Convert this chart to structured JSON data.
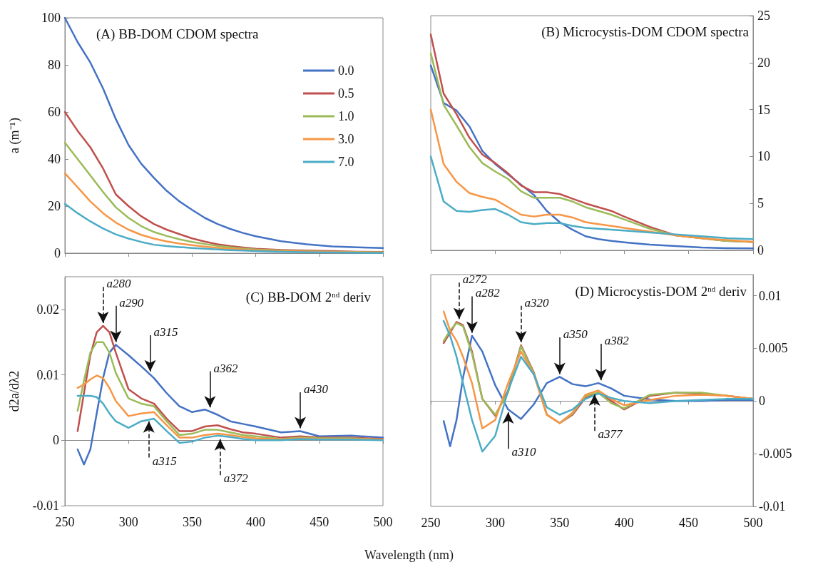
{
  "chart_data": [
    {
      "type": "line",
      "title": "(A) BB-DOM CDOM spectra",
      "ylabel": "a (m⁻¹)",
      "x": [
        250,
        260,
        270,
        280,
        290,
        300,
        310,
        320,
        330,
        340,
        350,
        360,
        370,
        380,
        390,
        400,
        420,
        440,
        460,
        480,
        500
      ],
      "series": [
        {
          "name": "0.0",
          "color": "#4472c4",
          "values": [
            100,
            89.7,
            81,
            70,
            57,
            46,
            38,
            32,
            26.5,
            22,
            18.4,
            15,
            12.4,
            10.3,
            8.6,
            7.2,
            5.1,
            3.8,
            2.9,
            2.5,
            2.2
          ]
        },
        {
          "name": "0.5",
          "color": "#c0504d",
          "values": [
            60,
            52,
            45,
            36,
            25,
            20,
            15.7,
            12.4,
            10,
            8.1,
            6.3,
            4.9,
            3.8,
            3,
            2.4,
            1.9,
            1.4,
            1.1,
            0.9,
            0.6,
            0.5
          ]
        },
        {
          "name": "1.0",
          "color": "#9bbb59",
          "values": [
            47,
            40,
            33,
            26,
            19.5,
            15,
            11.5,
            9,
            7.3,
            5.9,
            4.8,
            3.9,
            3.1,
            2.5,
            2,
            1.6,
            1.1,
            0.8,
            0.6,
            0.5,
            0.4
          ]
        },
        {
          "name": "3.0",
          "color": "#f79646",
          "values": [
            34,
            28,
            22,
            17,
            13,
            10,
            7.8,
            6.2,
            5,
            4.1,
            3.4,
            2.8,
            2.3,
            1.9,
            1.6,
            1.3,
            0.9,
            0.7,
            0.5,
            0.4,
            0.3
          ]
        },
        {
          "name": "7.0",
          "color": "#4bacc6",
          "values": [
            21,
            17,
            13.5,
            10.5,
            8,
            6.2,
            4.8,
            3.6,
            3,
            2.6,
            2.2,
            1.9,
            1.6,
            1.3,
            1.1,
            0.9,
            0.6,
            0.4,
            0.3,
            0.2,
            0.1
          ]
        }
      ],
      "xlim": [
        250,
        500
      ],
      "xticks": [
        {
          "value": 250,
          "label": null
        },
        {
          "value": 300,
          "label": null
        },
        {
          "value": 350,
          "label": null
        },
        {
          "value": 400,
          "label": null
        },
        {
          "value": 450,
          "label": null
        },
        {
          "value": 500,
          "label": null
        }
      ],
      "ylim": [
        0,
        100
      ],
      "yticks": [
        0,
        20,
        40,
        60,
        80,
        100
      ],
      "tick_labels": "y",
      "legend": "top right",
      "marker": "none"
    },
    {
      "type": "line",
      "title": "(B) Microcystis-DOM CDOM spectra",
      "x": [
        250,
        260,
        270,
        280,
        290,
        300,
        310,
        320,
        330,
        340,
        350,
        360,
        370,
        380,
        390,
        400,
        420,
        440,
        460,
        480,
        500
      ],
      "series": [
        {
          "color": "#4472c4",
          "values": [
            19.7,
            15.7,
            14.9,
            13.2,
            10.6,
            9.2,
            8.1,
            7,
            5.9,
            4.2,
            3,
            2.2,
            1.5,
            1.2,
            1,
            0.85,
            0.6,
            0.45,
            0.3,
            0.22,
            0.2
          ]
        },
        {
          "color": "#c0504d",
          "values": [
            23,
            16.7,
            14.5,
            12,
            10.2,
            9.3,
            8.2,
            6.9,
            6.2,
            6.2,
            6,
            5.5,
            5,
            4.6,
            4.2,
            3.6,
            2.5,
            1.6,
            1.3,
            1,
            0.9
          ]
        },
        {
          "color": "#9bbb59",
          "values": [
            21,
            15.5,
            13.3,
            11,
            9.3,
            8.4,
            7.6,
            6.3,
            5.6,
            5.6,
            5.6,
            5.2,
            4.6,
            4.2,
            3.8,
            3.3,
            2.3,
            1.6,
            1.3,
            1,
            0.9
          ]
        },
        {
          "color": "#f79646",
          "values": [
            15,
            9.2,
            7.3,
            6.1,
            5.7,
            5.4,
            4.6,
            3.8,
            3.6,
            3.8,
            3.8,
            3.5,
            3,
            2.8,
            2.6,
            2.4,
            2,
            1.6,
            1.3,
            1.1,
            0.9
          ]
        },
        {
          "color": "#4bacc6",
          "values": [
            10,
            5.2,
            4.2,
            4.1,
            4.3,
            4.4,
            3.8,
            3,
            2.8,
            2.9,
            2.9,
            2.6,
            2.4,
            2.3,
            2.2,
            2.1,
            1.9,
            1.7,
            1.5,
            1.3,
            1.2
          ]
        }
      ],
      "xlim": [
        250,
        500
      ],
      "xticks": [
        {
          "value": 250,
          "label": null
        },
        {
          "value": 300,
          "label": null
        },
        {
          "value": 350,
          "label": null
        },
        {
          "value": 400,
          "label": null
        },
        {
          "value": 450,
          "label": null
        },
        {
          "value": 500,
          "label": null
        }
      ],
      "ylim": [
        0,
        25
      ],
      "yticks": [
        0,
        5,
        10,
        15,
        20,
        25
      ],
      "tick_labels": "y",
      "marker": "none"
    },
    {
      "type": "line",
      "title": "(C) BB-DOM 2$^{nd}$ deriv",
      "ylabel": "d2a/dλ2",
      "xlabel": "Wavelength (nm)",
      "x": [
        260,
        265,
        270,
        275,
        280,
        285,
        290,
        300,
        310,
        320,
        330,
        340,
        350,
        360,
        370,
        380,
        390,
        400,
        420,
        435,
        450,
        475,
        500
      ],
      "series": [
        {
          "color": "#4472c4",
          "values": [
            -0.0014,
            -0.0037,
            -0.0014,
            0.0041,
            0.0095,
            0.0134,
            0.0146,
            0.013,
            0.0113,
            0.0095,
            0.0072,
            0.0052,
            0.0043,
            0.0047,
            0.0039,
            0.0029,
            0.0025,
            0.0021,
            0.0012,
            0.0014,
            0.0006,
            0.0007,
            0.0004
          ]
        },
        {
          "color": "#c0504d",
          "values": [
            0.0014,
            0.0072,
            0.013,
            0.0165,
            0.0175,
            0.0165,
            0.0134,
            0.0078,
            0.0064,
            0.0056,
            0.0033,
            0.0014,
            0.0014,
            0.0021,
            0.0023,
            0.0017,
            0.0012,
            0.001,
            0.0004,
            0.0006,
            0.0004,
            0.0004,
            0.0002
          ]
        },
        {
          "color": "#9bbb59",
          "values": [
            0.0045,
            0.0091,
            0.0134,
            0.015,
            0.015,
            0.0134,
            0.0103,
            0.0064,
            0.0056,
            0.0052,
            0.0029,
            0.0008,
            0.001,
            0.0016,
            0.0016,
            0.0012,
            0.0008,
            0.0006,
            0.0002,
            0.0004,
            0.0003,
            0.0003,
            0.0001
          ]
        },
        {
          "color": "#f79646",
          "values": [
            0.008,
            0.0085,
            0.0093,
            0.0099,
            0.0095,
            0.008,
            0.006,
            0.0037,
            0.0041,
            0.0043,
            0.0023,
            0.0004,
            0.0004,
            0.0008,
            0.001,
            0.0008,
            0.0005,
            0.0003,
            0.0001,
            0.0003,
            0.0002,
            0.0002,
            0.0001
          ]
        },
        {
          "color": "#4bacc6",
          "values": [
            0.0068,
            0.0068,
            0.0068,
            0.0066,
            0.0056,
            0.0041,
            0.0029,
            0.0019,
            0.0029,
            0.0033,
            0.0014,
            -0.0004,
            -0.0002,
            0.0004,
            0.0007,
            0.0005,
            0.0002,
            0,
            0,
            0.0002,
            0.0001,
            0.0001,
            0
          ]
        }
      ],
      "annotations": [
        {
          "text": "a280",
          "x": 280,
          "y": 0.0175
        },
        {
          "text": "a290",
          "x": 290,
          "y": 0.0146
        },
        {
          "text": "a315",
          "x": 317,
          "y": 0.0101
        },
        {
          "text": "a362",
          "x": 364,
          "y": 0.0046
        },
        {
          "text": "a430",
          "x": 435,
          "y": 0.0014
        },
        {
          "text": "a315",
          "x": 316,
          "y": 0.0033
        },
        {
          "text": "a372",
          "x": 372,
          "y": 0.0006
        }
      ],
      "xlim": [
        250,
        500
      ],
      "xticks": [
        250,
        300,
        350,
        400,
        450,
        500
      ],
      "ylim": [
        -0.01,
        0.025
      ],
      "yticks": [
        -0.01,
        0,
        0.01,
        0.02
      ],
      "marker": "none"
    },
    {
      "type": "line",
      "title": "(D) Microcystis-DOM 2$^{nd}$ deriv",
      "x": [
        260,
        265,
        270,
        275,
        282,
        290,
        300,
        310,
        320,
        330,
        340,
        350,
        360,
        370,
        380,
        390,
        400,
        420,
        440,
        460,
        480,
        500
      ],
      "series": [
        {
          "color": "#4472c4",
          "values": [
            -0.0019,
            -0.0043,
            -0.0018,
            0.0022,
            0.0062,
            0.0047,
            0.0015,
            -0.0008,
            -0.0017,
            -0.0003,
            0.0017,
            0.0023,
            0.0016,
            0.0014,
            0.0017,
            0.0012,
            0.0005,
            0.00015,
            0,
            0,
            0.0001,
            0.0001
          ]
        },
        {
          "color": "#c0504d",
          "values": [
            0.0055,
            0.0065,
            0.0075,
            0.0072,
            0.0047,
            0.0002,
            -0.0014,
            0.001,
            0.0053,
            0.0027,
            -0.0013,
            -0.0021,
            -0.0013,
            0.0003,
            0.0008,
            0,
            -0.0008,
            0.0005,
            0.0008,
            0.0007,
            0.0005,
            0.0002
          ]
        },
        {
          "color": "#9bbb59",
          "values": [
            0.0057,
            0.0067,
            0.0074,
            0.0071,
            0.0045,
            0.0002,
            -0.0013,
            0.0008,
            0.0052,
            0.0026,
            -0.0013,
            -0.0021,
            -0.0012,
            0.0005,
            0.0008,
            -0.0002,
            -0.0007,
            0.0006,
            0.0008,
            0.0008,
            0.0005,
            0.0002
          ]
        },
        {
          "color": "#f79646",
          "values": [
            0.0085,
            0.0067,
            0.0057,
            0.0042,
            0.0017,
            -0.0026,
            -0.0018,
            0.0017,
            0.0047,
            0.0025,
            -0.0013,
            -0.0021,
            -0.0011,
            0.0006,
            0.001,
            0.0002,
            -0.0004,
            0.0001,
            0.0005,
            0.0006,
            0.0005,
            0.0002
          ]
        },
        {
          "color": "#4bacc6",
          "values": [
            0.0076,
            0.0062,
            0.0042,
            0.0017,
            -0.0018,
            -0.0048,
            -0.0033,
            0.001,
            0.0042,
            0.0025,
            -0.0006,
            -0.0013,
            -0.0008,
            0.0002,
            0.0007,
            0.0003,
            0,
            -0.0002,
            0,
            0.0001,
            0.0002,
            0.0002
          ]
        }
      ],
      "annotations": [
        {
          "text": "a272",
          "x": 272,
          "y": 0.0075
        },
        {
          "text": "a282",
          "x": 282,
          "y": 0.0062
        },
        {
          "text": "a320",
          "x": 320,
          "y": 0.0053
        },
        {
          "text": "a350",
          "x": 350,
          "y": 0.0023
        },
        {
          "text": "a382",
          "x": 382,
          "y": 0.0017
        },
        {
          "text": "a310",
          "x": 310,
          "y": -0.0008
        },
        {
          "text": "a377",
          "x": 377,
          "y": 0.0009
        }
      ],
      "xlim": [
        250,
        500
      ],
      "xticks": [
        250,
        300,
        350,
        400,
        450,
        500
      ],
      "ylim": [
        -0.01,
        0.012
      ],
      "yticks": [
        -0.01,
        -0.005,
        0,
        0.005,
        0.01
      ],
      "marker": "none"
    }
  ]
}
